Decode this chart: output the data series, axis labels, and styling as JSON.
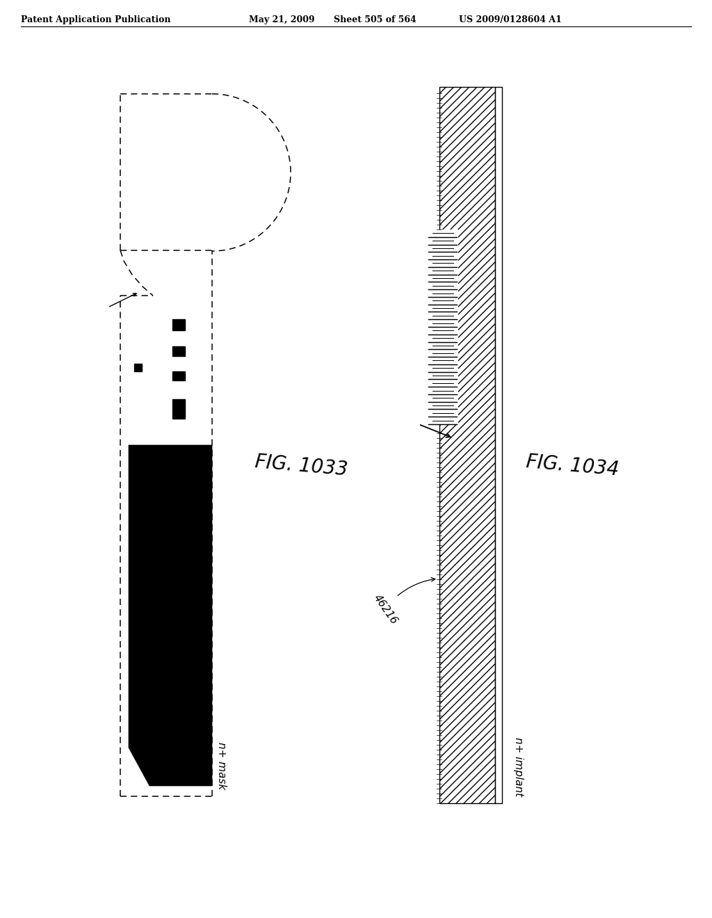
{
  "bg_color": "#ffffff",
  "header_text": "Patent Application Publication",
  "header_date": "May 21, 2009",
  "header_sheet": "Sheet 505 of 564",
  "header_patent": "US 2009/0128604 A1",
  "fig1033_label": "FIG. 1033",
  "fig1034_label": "FIG. 1034",
  "label_mask": "n+ mask",
  "label_implant": "n+ implant",
  "label_46216": "46216"
}
